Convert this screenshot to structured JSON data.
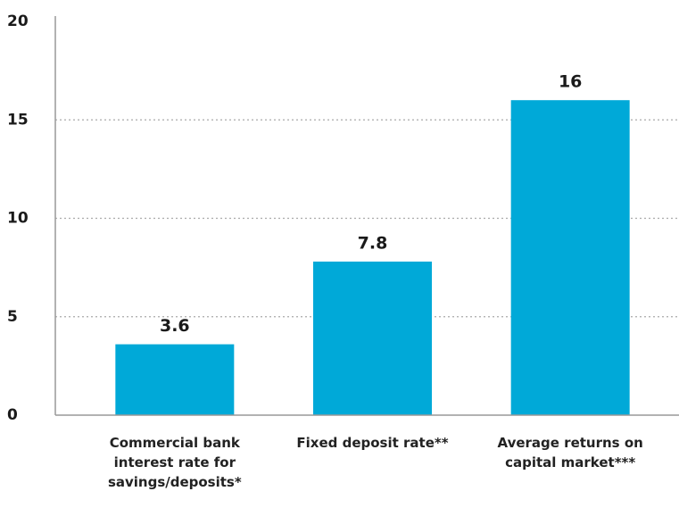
{
  "chart_data": {
    "type": "bar",
    "categories": [
      "Commercial bank interest rate for savings/deposits*",
      "Fixed deposit rate**",
      "Average returns on capital market***"
    ],
    "values": [
      3.6,
      7.8,
      16
    ],
    "color": "#00a9d8",
    "ylim": [
      0,
      20
    ],
    "yticks": [
      0,
      5,
      10,
      15,
      20
    ],
    "grid": true
  }
}
